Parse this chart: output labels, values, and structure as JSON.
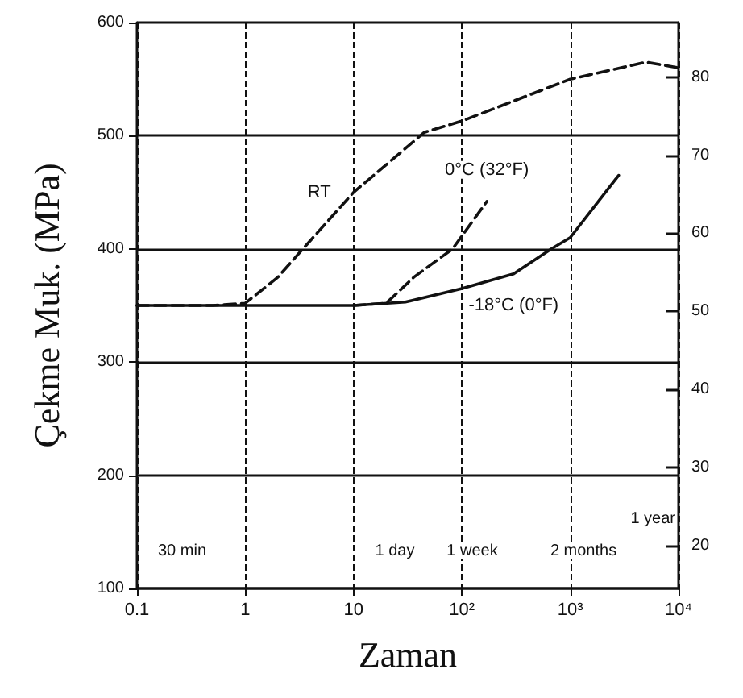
{
  "chart_data": {
    "type": "line",
    "xlabel": "Zaman",
    "ylabel": "Çekme Muk. (MPa)",
    "log": "x",
    "grid": true,
    "legend": false,
    "marker": "none",
    "xlim": [
      0.1,
      10000
    ],
    "xticks": [
      {
        "value": 0.1,
        "label": "0.1"
      },
      {
        "value": 1,
        "label": "1"
      },
      {
        "value": 10,
        "label": "10"
      },
      {
        "value": 100,
        "label": "10²"
      },
      {
        "value": 1000,
        "label": "10³"
      },
      {
        "value": 10000,
        "label": "10⁴"
      }
    ],
    "ylim": [
      100,
      600
    ],
    "yticks": [
      100,
      200,
      300,
      400,
      500,
      600
    ],
    "y2lim": [
      14.5,
      87
    ],
    "y2ticks": [
      20,
      30,
      40,
      50,
      60,
      70,
      80
    ],
    "series": [
      {
        "name": "RT",
        "color": "#111111",
        "line_style": "dashed",
        "x": [
          0.1,
          0.5,
          1,
          2,
          3.4,
          10,
          45,
          100,
          1000,
          5000,
          10000
        ],
        "values": [
          350,
          350,
          352,
          375,
          400,
          450,
          503,
          513,
          550,
          565,
          560
        ]
      },
      {
        "name": "0°C (32°F)",
        "color": "#111111",
        "line_style": "dashed",
        "x": [
          10,
          20,
          36,
          82,
          170
        ],
        "values": [
          350,
          352,
          375,
          400,
          442
        ]
      },
      {
        "name": "-18°C (0°F)",
        "color": "#111111",
        "line_style": "solid",
        "x": [
          0.1,
          10,
          30,
          100,
          300,
          670,
          1000,
          2800
        ],
        "values": [
          350,
          350,
          353,
          365,
          378,
          400,
          410,
          465
        ]
      }
    ],
    "annotations": [
      "30 min",
      "1 day",
      "1 week",
      "2 months",
      "1 year"
    ]
  }
}
